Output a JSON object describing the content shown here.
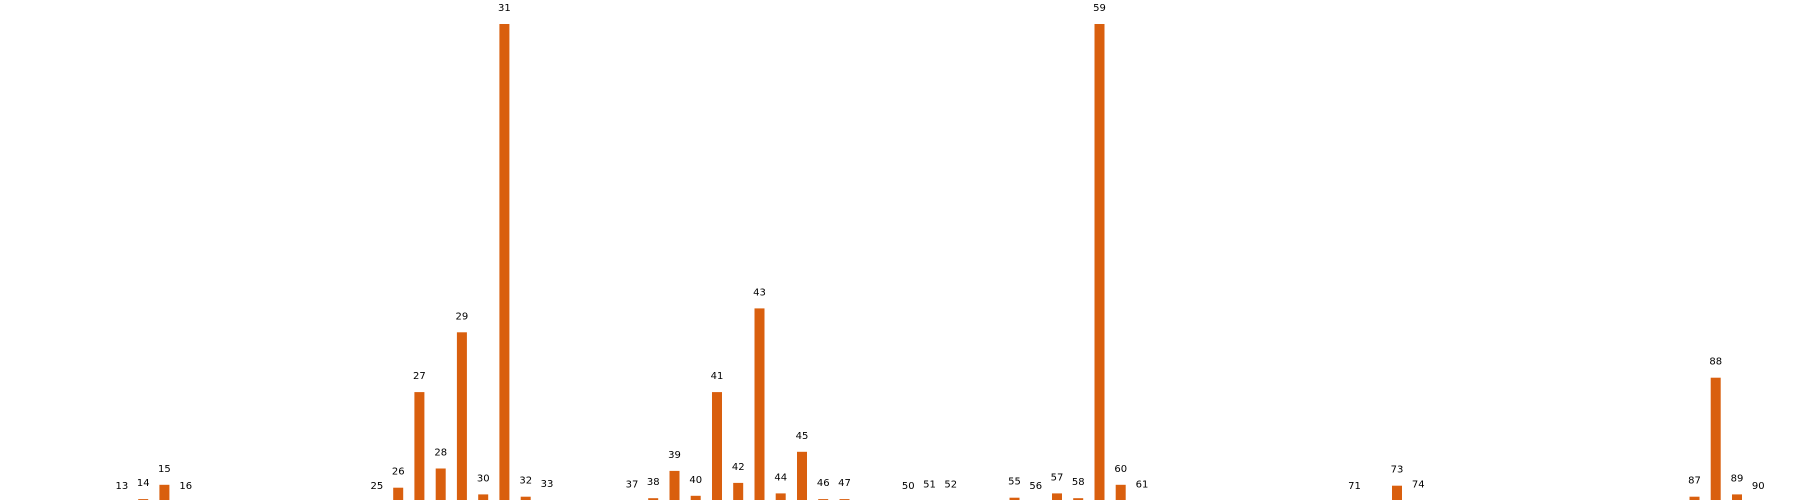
{
  "chart_data": {
    "type": "bar",
    "title": "",
    "xlabel": "",
    "ylabel": "",
    "grid": false,
    "axes_visible": false,
    "bar_color": "#d95f0e",
    "label_color": "#000000",
    "ylim": [
      0,
      100
    ],
    "categories": [
      "13",
      "14",
      "15",
      "16",
      "25",
      "26",
      "27",
      "28",
      "29",
      "30",
      "31",
      "32",
      "33",
      "37",
      "38",
      "39",
      "40",
      "41",
      "42",
      "43",
      "44",
      "45",
      "46",
      "47",
      "50",
      "51",
      "52",
      "55",
      "56",
      "57",
      "58",
      "59",
      "60",
      "61",
      "71",
      "73",
      "74",
      "87",
      "88",
      "89",
      "90"
    ],
    "values": [
      0,
      0.6,
      3.6,
      0,
      0,
      3,
      23,
      7,
      35.5,
      1.6,
      100,
      1.1,
      0.4,
      0.3,
      0.8,
      6.5,
      1.3,
      23,
      4,
      40.5,
      1.8,
      10.5,
      0.6,
      0.6,
      0,
      0.3,
      0.3,
      0.9,
      0,
      1.8,
      0.8,
      100,
      3.6,
      0.3,
      0,
      3.4,
      0.3,
      1.1,
      26,
      1.6,
      0
    ]
  }
}
